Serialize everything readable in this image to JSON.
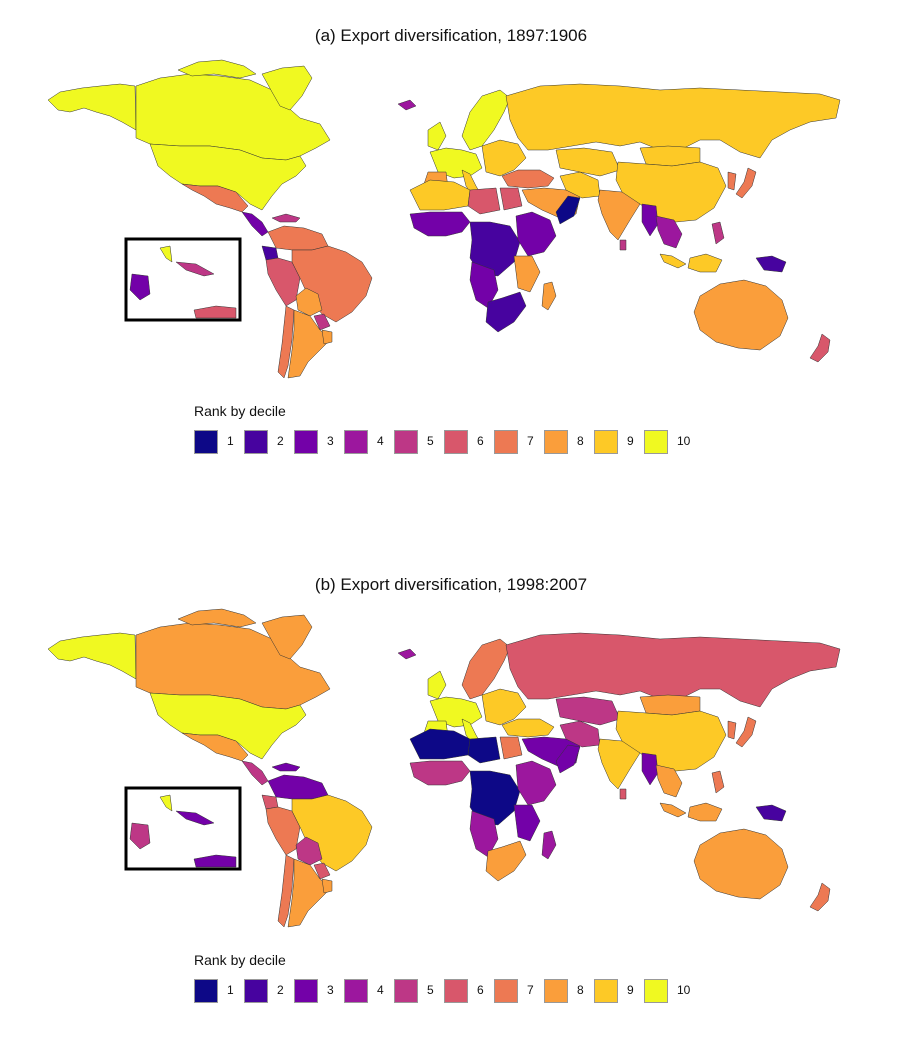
{
  "panels": [
    {
      "id": "a",
      "title": "(a) Export diversification, 1897:1906",
      "legend_title": "Rank by decile",
      "regions": [
        {
          "name": "alaska",
          "rank": 10
        },
        {
          "name": "canada",
          "rank": 10
        },
        {
          "name": "canadian-arctic-islands",
          "rank": 10
        },
        {
          "name": "greenland",
          "rank": 10
        },
        {
          "name": "usa",
          "rank": 10
        },
        {
          "name": "mexico",
          "rank": 7
        },
        {
          "name": "central-america",
          "rank": 3
        },
        {
          "name": "caribbean",
          "rank": 5
        },
        {
          "name": "venezuela-colombia",
          "rank": 7
        },
        {
          "name": "ecuador",
          "rank": 2
        },
        {
          "name": "peru",
          "rank": 6
        },
        {
          "name": "brazil",
          "rank": 7
        },
        {
          "name": "bolivia",
          "rank": 8
        },
        {
          "name": "paraguay",
          "rank": 5
        },
        {
          "name": "chile",
          "rank": 7
        },
        {
          "name": "argentina",
          "rank": 8
        },
        {
          "name": "uruguay",
          "rank": 8
        },
        {
          "name": "iceland",
          "rank": 4
        },
        {
          "name": "uk-ireland",
          "rank": 10
        },
        {
          "name": "scandinavia",
          "rank": 10
        },
        {
          "name": "western-europe",
          "rank": 10
        },
        {
          "name": "iberia",
          "rank": 8
        },
        {
          "name": "italy",
          "rank": 9
        },
        {
          "name": "eastern-europe",
          "rank": 9
        },
        {
          "name": "russia",
          "rank": 9
        },
        {
          "name": "ottoman-turkey",
          "rank": 7
        },
        {
          "name": "north-africa-west",
          "rank": 9
        },
        {
          "name": "libya",
          "rank": 6
        },
        {
          "name": "egypt",
          "rank": 6
        },
        {
          "name": "middle-east",
          "rank": 8
        },
        {
          "name": "iran",
          "rank": 9
        },
        {
          "name": "central-asia",
          "rank": 9
        },
        {
          "name": "mongolia",
          "rank": 9
        },
        {
          "name": "china",
          "rank": 9
        },
        {
          "name": "india",
          "rank": 8
        },
        {
          "name": "burma",
          "rank": 3
        },
        {
          "name": "indochina",
          "rank": 4
        },
        {
          "name": "japan",
          "rank": 7
        },
        {
          "name": "korea",
          "rank": 7
        },
        {
          "name": "sumatra",
          "rank": 9
        },
        {
          "name": "borneo-java",
          "rank": 9
        },
        {
          "name": "philippines",
          "rank": 5
        },
        {
          "name": "new-guinea",
          "rank": 2
        },
        {
          "name": "sri-lanka",
          "rank": 5
        },
        {
          "name": "west-africa",
          "rank": 3
        },
        {
          "name": "central-africa",
          "rank": 2
        },
        {
          "name": "east-africa",
          "rank": 3
        },
        {
          "name": "horn-of-africa",
          "rank": 1
        },
        {
          "name": "mozambique",
          "rank": 8
        },
        {
          "name": "angola-namibia",
          "rank": 3
        },
        {
          "name": "southern-africa",
          "rank": 2
        },
        {
          "name": "madagascar",
          "rank": 8
        },
        {
          "name": "australia",
          "rank": 8
        },
        {
          "name": "new-zealand",
          "rank": 6
        },
        {
          "name": "inset-florida",
          "rank": 10
        },
        {
          "name": "inset-cuba",
          "rank": 5
        },
        {
          "name": "inset-central-america",
          "rank": 3
        },
        {
          "name": "inset-venezuela-coast",
          "rank": 6
        }
      ]
    },
    {
      "id": "b",
      "title": "(b) Export diversification, 1998:2007",
      "legend_title": "Rank by decile",
      "regions": [
        {
          "name": "alaska",
          "rank": 10
        },
        {
          "name": "canada",
          "rank": 8
        },
        {
          "name": "canadian-arctic-islands",
          "rank": 8
        },
        {
          "name": "greenland",
          "rank": 8
        },
        {
          "name": "usa",
          "rank": 10
        },
        {
          "name": "mexico",
          "rank": 8
        },
        {
          "name": "central-america",
          "rank": 5
        },
        {
          "name": "caribbean",
          "rank": 3
        },
        {
          "name": "venezuela-colombia",
          "rank": 3
        },
        {
          "name": "ecuador",
          "rank": 6
        },
        {
          "name": "peru",
          "rank": 7
        },
        {
          "name": "brazil",
          "rank": 9
        },
        {
          "name": "bolivia",
          "rank": 5
        },
        {
          "name": "paraguay",
          "rank": 6
        },
        {
          "name": "chile",
          "rank": 7
        },
        {
          "name": "argentina",
          "rank": 8
        },
        {
          "name": "uruguay",
          "rank": 8
        },
        {
          "name": "iceland",
          "rank": 4
        },
        {
          "name": "uk-ireland",
          "rank": 10
        },
        {
          "name": "scandinavia",
          "rank": 7
        },
        {
          "name": "western-europe",
          "rank": 10
        },
        {
          "name": "iberia",
          "rank": 10
        },
        {
          "name": "italy",
          "rank": 10
        },
        {
          "name": "eastern-europe",
          "rank": 9
        },
        {
          "name": "russia",
          "rank": 6
        },
        {
          "name": "ottoman-turkey",
          "rank": 9
        },
        {
          "name": "north-africa-west",
          "rank": 1
        },
        {
          "name": "libya",
          "rank": 1
        },
        {
          "name": "egypt",
          "rank": 7
        },
        {
          "name": "middle-east",
          "rank": 3
        },
        {
          "name": "iran",
          "rank": 5
        },
        {
          "name": "central-asia",
          "rank": 5
        },
        {
          "name": "mongolia",
          "rank": 8
        },
        {
          "name": "china",
          "rank": 9
        },
        {
          "name": "india",
          "rank": 9
        },
        {
          "name": "burma",
          "rank": 3
        },
        {
          "name": "indochina",
          "rank": 8
        },
        {
          "name": "japan",
          "rank": 7
        },
        {
          "name": "korea",
          "rank": 7
        },
        {
          "name": "sumatra",
          "rank": 8
        },
        {
          "name": "borneo-java",
          "rank": 8
        },
        {
          "name": "philippines",
          "rank": 7
        },
        {
          "name": "new-guinea",
          "rank": 2
        },
        {
          "name": "sri-lanka",
          "rank": 6
        },
        {
          "name": "west-africa",
          "rank": 5
        },
        {
          "name": "central-africa",
          "rank": 1
        },
        {
          "name": "east-africa",
          "rank": 4
        },
        {
          "name": "horn-of-africa",
          "rank": 3
        },
        {
          "name": "mozambique",
          "rank": 3
        },
        {
          "name": "angola-namibia",
          "rank": 4
        },
        {
          "name": "southern-africa",
          "rank": 8
        },
        {
          "name": "madagascar",
          "rank": 4
        },
        {
          "name": "australia",
          "rank": 8
        },
        {
          "name": "new-zealand",
          "rank": 7
        },
        {
          "name": "inset-florida",
          "rank": 10
        },
        {
          "name": "inset-cuba",
          "rank": 3
        },
        {
          "name": "inset-central-america",
          "rank": 5
        },
        {
          "name": "inset-venezuela-coast",
          "rank": 3
        }
      ]
    }
  ],
  "legend": {
    "items": [
      {
        "label": "1",
        "color": "#0d0887"
      },
      {
        "label": "2",
        "color": "#47039f"
      },
      {
        "label": "3",
        "color": "#7301a8"
      },
      {
        "label": "4",
        "color": "#9c179e"
      },
      {
        "label": "5",
        "color": "#bd3786"
      },
      {
        "label": "6",
        "color": "#d8576b"
      },
      {
        "label": "7",
        "color": "#ed7953"
      },
      {
        "label": "8",
        "color": "#fa9e3b"
      },
      {
        "label": "9",
        "color": "#fdc926"
      },
      {
        "label": "10",
        "color": "#f0f921"
      }
    ]
  }
}
